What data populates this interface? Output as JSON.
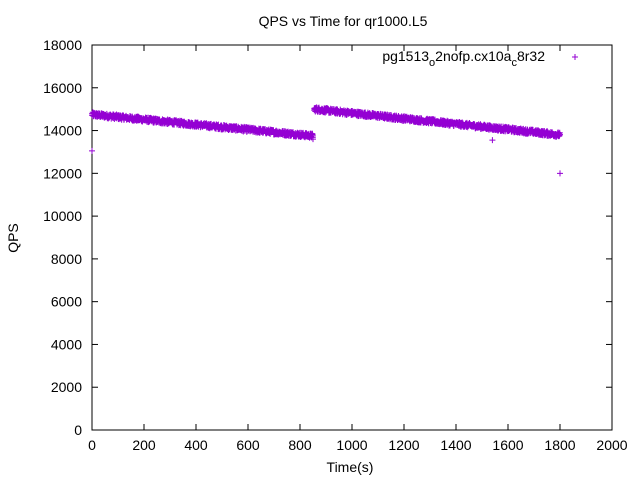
{
  "chart_data": {
    "type": "scatter",
    "title": "QPS vs Time for qr1000.L5",
    "xlabel": "Time(s)",
    "ylabel": "QPS",
    "xlim": [
      0,
      2000
    ],
    "ylim": [
      0,
      18000
    ],
    "x_ticks": [
      0,
      200,
      400,
      600,
      800,
      1000,
      1200,
      1400,
      1600,
      1800,
      2000
    ],
    "y_ticks": [
      0,
      2000,
      4000,
      6000,
      8000,
      10000,
      12000,
      14000,
      16000,
      18000
    ],
    "legend_position": "top-right",
    "grid": false,
    "marker": "+",
    "series_color": "#9400d3",
    "series": [
      {
        "name_parts": [
          "pg1513",
          "o",
          "2nofp.cx10a",
          "c",
          "8r32"
        ],
        "segments": [
          {
            "x_start": 0,
            "x_end": 850,
            "y_start": 14750,
            "y_end": 13750,
            "noise": 110
          },
          {
            "x_start": 855,
            "x_end": 1800,
            "y_start": 15000,
            "y_end": 13800,
            "noise": 110
          }
        ],
        "outliers": [
          {
            "x": 0,
            "y": 13050
          },
          {
            "x": 850,
            "y": 13600
          },
          {
            "x": 855,
            "y": 14950
          },
          {
            "x": 1540,
            "y": 13550
          },
          {
            "x": 1800,
            "y": 12000
          }
        ]
      }
    ]
  }
}
